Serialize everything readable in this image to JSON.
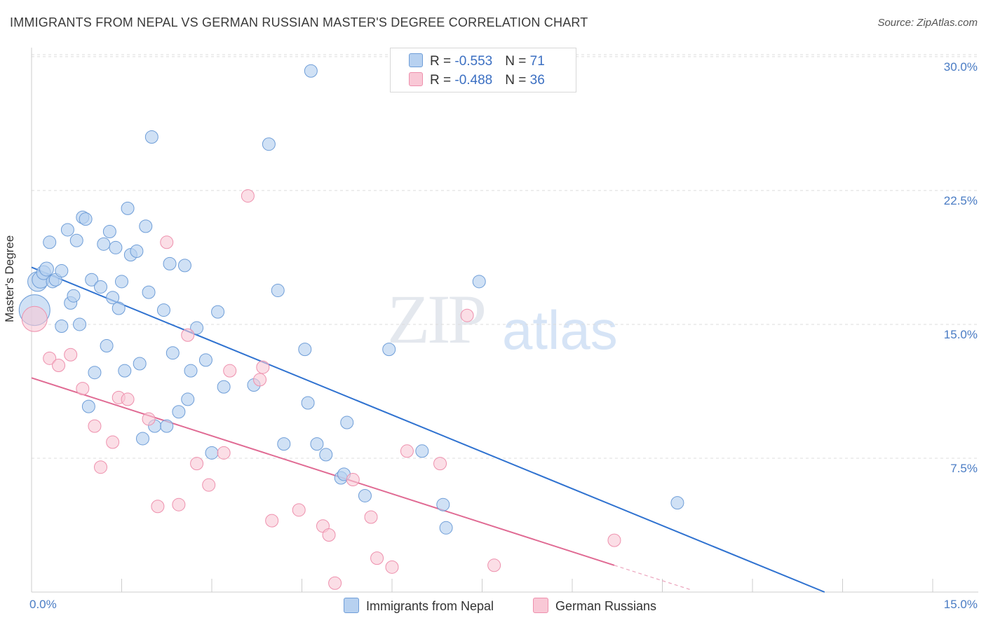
{
  "title": "IMMIGRANTS FROM NEPAL VS GERMAN RUSSIAN MASTER'S DEGREE CORRELATION CHART",
  "source": "Source: ZipAtlas.com",
  "watermark": {
    "zip": "ZIP",
    "atlas": "atlas"
  },
  "legend": {
    "series1": {
      "r_label": "R = ",
      "r_value": "-0.553",
      "n_label": "N = ",
      "n_value": "71"
    },
    "series2": {
      "r_label": "R = ",
      "r_value": "-0.488",
      "n_label": "N = ",
      "n_value": "36"
    }
  },
  "colors": {
    "blue_fill": "#b7d1f0",
    "blue_stroke": "#6f9ed8",
    "blue_line": "#2f72d0",
    "pink_fill": "#f9c8d6",
    "pink_stroke": "#ee90ad",
    "pink_line": "#e06a93",
    "tick_text": "#4a7cc4"
  },
  "chart_data": {
    "type": "scatter",
    "title": "IMMIGRANTS FROM NEPAL VS GERMAN RUSSIAN MASTER'S DEGREE CORRELATION CHART",
    "xlabel": "",
    "ylabel": "Master's Degree",
    "xlim": [
      0,
      15
    ],
    "ylim": [
      0,
      31
    ],
    "x_tick_labels": [
      "0.0%",
      "15.0%"
    ],
    "y_ticks": [
      7.5,
      15.0,
      22.5,
      30.0
    ],
    "y_tick_labels": [
      "7.5%",
      "15.0%",
      "22.5%",
      "30.0%"
    ],
    "grid": true,
    "legend_position": "top-center",
    "series": [
      {
        "name": "Immigrants from Nepal",
        "color": "#6f9ed8",
        "trend": {
          "x": [
            0,
            13.2
          ],
          "y": [
            18.2,
            0
          ]
        },
        "points": [
          [
            0.05,
            15.8,
            22
          ],
          [
            0.1,
            17.4,
            14
          ],
          [
            0.15,
            17.5,
            12
          ],
          [
            0.2,
            17.9,
            10
          ],
          [
            0.25,
            18.1,
            10
          ],
          [
            0.3,
            19.6,
            9
          ],
          [
            0.35,
            17.4,
            9
          ],
          [
            0.4,
            17.5,
            9
          ],
          [
            0.5,
            18,
            9
          ],
          [
            0.5,
            14.9,
            9
          ],
          [
            0.6,
            20.3,
            9
          ],
          [
            0.65,
            16.2,
            9
          ],
          [
            0.7,
            16.6,
            9
          ],
          [
            0.75,
            19.7,
            9
          ],
          [
            0.8,
            15,
            9
          ],
          [
            0.85,
            21,
            9
          ],
          [
            0.9,
            20.9,
            9
          ],
          [
            0.95,
            10.4,
            9
          ],
          [
            1.0,
            17.5,
            9
          ],
          [
            1.05,
            12.3,
            9
          ],
          [
            1.15,
            17.1,
            9
          ],
          [
            1.2,
            19.5,
            9
          ],
          [
            1.25,
            13.8,
            9
          ],
          [
            1.3,
            20.2,
            9
          ],
          [
            1.35,
            16.5,
            9
          ],
          [
            1.4,
            19.3,
            9
          ],
          [
            1.45,
            15.9,
            9
          ],
          [
            1.5,
            17.4,
            9
          ],
          [
            1.55,
            12.4,
            9
          ],
          [
            1.6,
            21.5,
            9
          ],
          [
            1.65,
            18.9,
            9
          ],
          [
            1.75,
            19.1,
            9
          ],
          [
            1.8,
            12.8,
            9
          ],
          [
            1.85,
            8.6,
            9
          ],
          [
            1.9,
            20.5,
            9
          ],
          [
            1.95,
            16.8,
            9
          ],
          [
            2.0,
            25.5,
            9
          ],
          [
            2.05,
            9.3,
            9
          ],
          [
            2.2,
            15.8,
            9
          ],
          [
            2.25,
            9.3,
            9
          ],
          [
            2.3,
            18.4,
            9
          ],
          [
            2.35,
            13.4,
            9
          ],
          [
            2.45,
            10.1,
            9
          ],
          [
            2.55,
            18.3,
            9
          ],
          [
            2.6,
            10.8,
            9
          ],
          [
            2.65,
            12.4,
            9
          ],
          [
            2.75,
            14.8,
            9
          ],
          [
            2.9,
            13,
            9
          ],
          [
            3.0,
            7.8,
            9
          ],
          [
            3.1,
            15.7,
            9
          ],
          [
            3.2,
            11.5,
            9
          ],
          [
            3.7,
            11.6,
            9
          ],
          [
            3.95,
            25.1,
            9
          ],
          [
            4.1,
            16.9,
            9
          ],
          [
            4.2,
            8.3,
            9
          ],
          [
            4.55,
            13.6,
            9
          ],
          [
            4.6,
            10.6,
            9
          ],
          [
            4.65,
            29.2,
            9
          ],
          [
            4.75,
            8.3,
            9
          ],
          [
            4.9,
            7.7,
            9
          ],
          [
            5.15,
            6.4,
            9
          ],
          [
            5.2,
            6.6,
            9
          ],
          [
            5.25,
            9.5,
            9
          ],
          [
            5.55,
            5.4,
            9
          ],
          [
            5.95,
            13.6,
            9
          ],
          [
            6.5,
            7.9,
            9
          ],
          [
            6.85,
            4.9,
            9
          ],
          [
            6.9,
            3.6,
            9
          ],
          [
            7.45,
            17.4,
            9
          ],
          [
            10.75,
            5.0,
            9
          ]
        ]
      },
      {
        "name": "German Russians",
        "color": "#ee90ad",
        "trend": {
          "x": [
            0,
            9.7
          ],
          "y": [
            12,
            1.5
          ]
        },
        "trend_dashed": {
          "x": [
            9.7,
            11.0
          ],
          "y": [
            1.5,
            0.1
          ]
        },
        "points": [
          [
            0.05,
            15.3,
            18
          ],
          [
            0.3,
            13.1,
            9
          ],
          [
            0.45,
            12.7,
            9
          ],
          [
            0.65,
            13.3,
            9
          ],
          [
            0.85,
            11.4,
            9
          ],
          [
            1.05,
            9.3,
            9
          ],
          [
            1.15,
            7.0,
            9
          ],
          [
            1.35,
            8.4,
            9
          ],
          [
            1.45,
            10.9,
            9
          ],
          [
            1.6,
            10.8,
            9
          ],
          [
            1.95,
            9.7,
            9
          ],
          [
            2.1,
            4.8,
            9
          ],
          [
            2.25,
            19.6,
            9
          ],
          [
            2.45,
            4.9,
            9
          ],
          [
            2.6,
            14.4,
            9
          ],
          [
            2.75,
            7.2,
            9
          ],
          [
            2.95,
            6.0,
            9
          ],
          [
            3.2,
            7.8,
            9
          ],
          [
            3.3,
            12.4,
            9
          ],
          [
            3.6,
            22.2,
            9
          ],
          [
            3.8,
            11.9,
            9
          ],
          [
            3.85,
            12.6,
            9
          ],
          [
            4.0,
            4.0,
            9
          ],
          [
            4.45,
            4.6,
            9
          ],
          [
            4.85,
            3.7,
            9
          ],
          [
            4.95,
            3.2,
            9
          ],
          [
            5.05,
            0.5,
            9
          ],
          [
            5.35,
            6.3,
            9
          ],
          [
            5.65,
            4.2,
            9
          ],
          [
            5.75,
            1.9,
            9
          ],
          [
            6.0,
            1.4,
            9
          ],
          [
            6.25,
            7.9,
            9
          ],
          [
            6.8,
            7.2,
            9
          ],
          [
            7.25,
            15.5,
            9
          ],
          [
            7.7,
            1.5,
            9
          ],
          [
            9.7,
            2.9,
            9
          ]
        ]
      }
    ]
  }
}
